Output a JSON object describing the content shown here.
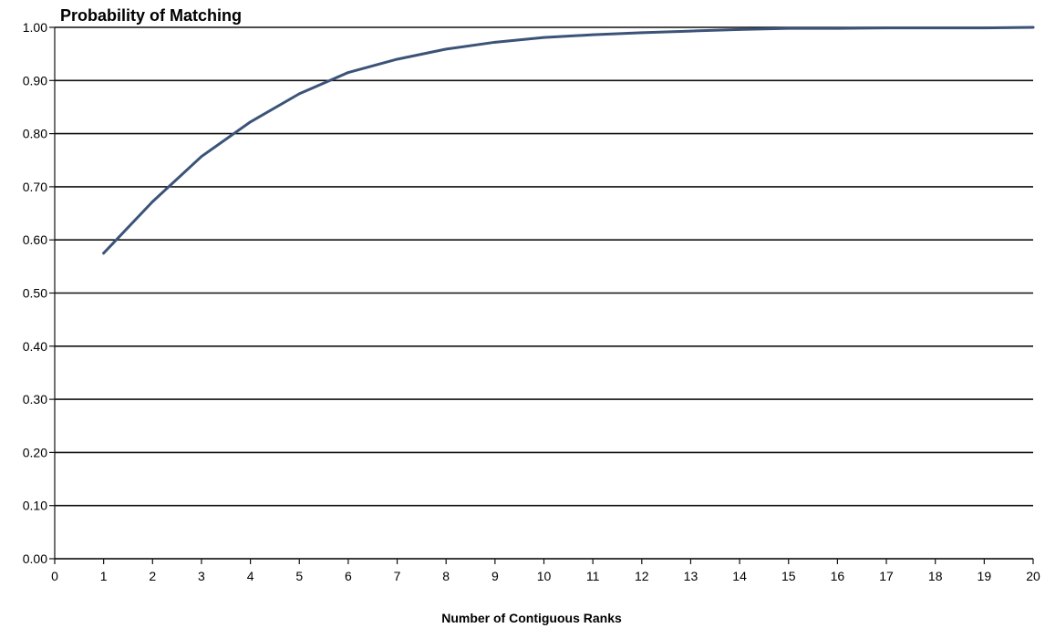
{
  "chart_data": {
    "type": "line",
    "title": "Probability of Matching",
    "xlabel": "Number of Contiguous Ranks",
    "ylabel": "",
    "xlim": [
      0,
      20
    ],
    "ylim": [
      0,
      1
    ],
    "grid": true,
    "legend": "none",
    "x_ticks": [
      "0",
      "1",
      "2",
      "3",
      "4",
      "5",
      "6",
      "7",
      "8",
      "9",
      "10",
      "11",
      "12",
      "13",
      "14",
      "15",
      "16",
      "17",
      "18",
      "19",
      "20"
    ],
    "y_ticks": [
      "0.00",
      "0.10",
      "0.20",
      "0.30",
      "0.40",
      "0.50",
      "0.60",
      "0.70",
      "0.80",
      "0.90",
      "1.00"
    ],
    "series": [
      {
        "color": "#3b5378",
        "x": [
          1,
          2,
          3,
          4,
          5,
          6,
          7,
          8,
          9,
          10,
          11,
          12,
          13,
          14,
          15,
          16,
          17,
          18,
          19,
          20
        ],
        "y": [
          0.575,
          0.672,
          0.757,
          0.822,
          0.875,
          0.915,
          0.94,
          0.959,
          0.972,
          0.981,
          0.986,
          0.99,
          0.993,
          0.996,
          0.998,
          0.998,
          0.999,
          0.999,
          0.999,
          1.0
        ]
      }
    ]
  }
}
